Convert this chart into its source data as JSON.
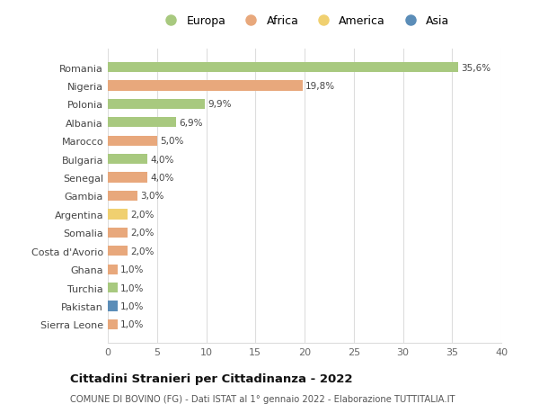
{
  "countries": [
    "Romania",
    "Nigeria",
    "Polonia",
    "Albania",
    "Marocco",
    "Bulgaria",
    "Senegal",
    "Gambia",
    "Argentina",
    "Somalia",
    "Costa d'Avorio",
    "Ghana",
    "Turchia",
    "Pakistan",
    "Sierra Leone"
  ],
  "values": [
    35.6,
    19.8,
    9.9,
    6.9,
    5.0,
    4.0,
    4.0,
    3.0,
    2.0,
    2.0,
    2.0,
    1.0,
    1.0,
    1.0,
    1.0
  ],
  "labels": [
    "35,6%",
    "19,8%",
    "9,9%",
    "6,9%",
    "5,0%",
    "4,0%",
    "4,0%",
    "3,0%",
    "2,0%",
    "2,0%",
    "2,0%",
    "1,0%",
    "1,0%",
    "1,0%",
    "1,0%"
  ],
  "continent": [
    "Europa",
    "Africa",
    "Europa",
    "Europa",
    "Africa",
    "Europa",
    "Africa",
    "Africa",
    "America",
    "Africa",
    "Africa",
    "Africa",
    "Europa",
    "Asia",
    "Africa"
  ],
  "colors": {
    "Europa": "#a8c97f",
    "Africa": "#e8a87c",
    "America": "#f0d070",
    "Asia": "#5b8db8"
  },
  "legend": [
    "Europa",
    "Africa",
    "America",
    "Asia"
  ],
  "legend_colors": [
    "#a8c97f",
    "#e8a87c",
    "#f0d070",
    "#5b8db8"
  ],
  "title": "Cittadini Stranieri per Cittadinanza - 2022",
  "subtitle": "COMUNE DI BOVINO (FG) - Dati ISTAT al 1° gennaio 2022 - Elaborazione TUTTITALIA.IT",
  "xlim": [
    0,
    40
  ],
  "xticks": [
    0,
    5,
    10,
    15,
    20,
    25,
    30,
    35,
    40
  ],
  "background_color": "#ffffff",
  "grid_color": "#dddddd"
}
